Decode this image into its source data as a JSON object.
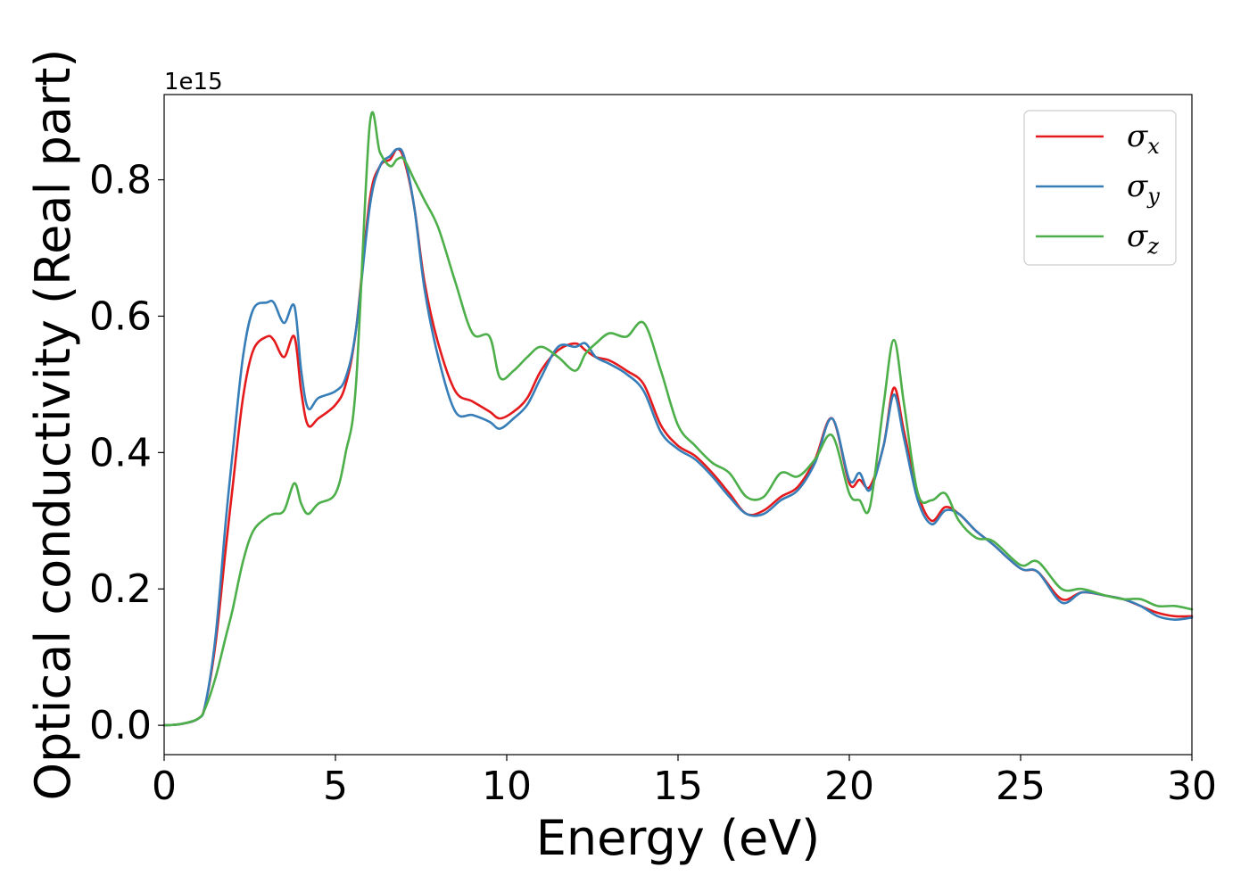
{
  "chart_data": {
    "type": "line",
    "xlabel": "Energy (eV)",
    "ylabel": "Optical conductivity (Real part)",
    "y_offset_label": "1e15",
    "xlim": [
      0,
      30
    ],
    "ylim": [
      -0.043,
      0.925
    ],
    "x_ticks": [
      0,
      5,
      10,
      15,
      20,
      25,
      30
    ],
    "x_tick_labels": [
      "0",
      "5",
      "10",
      "15",
      "20",
      "25",
      "30"
    ],
    "y_ticks": [
      0.0,
      0.2,
      0.4,
      0.6,
      0.8
    ],
    "y_tick_labels": [
      "0.0",
      "0.2",
      "0.4",
      "0.6",
      "0.8"
    ],
    "grid": false,
    "legend_position": "top-right",
    "series": [
      {
        "name": "σx",
        "symbol": "σ",
        "subscript": "x",
        "color": "#e41a1c",
        "x": [
          0,
          0.5,
          1.0,
          1.2,
          1.5,
          1.8,
          2.0,
          2.3,
          2.6,
          3.0,
          3.2,
          3.5,
          3.8,
          4.0,
          4.2,
          4.5,
          5.0,
          5.3,
          5.6,
          6.0,
          6.3,
          6.6,
          6.8,
          7.0,
          7.3,
          7.6,
          8.0,
          8.5,
          9.0,
          9.5,
          9.8,
          10.2,
          10.6,
          11.0,
          11.5,
          12.0,
          12.3,
          12.6,
          13.0,
          13.5,
          14.0,
          14.5,
          15.0,
          15.5,
          16.0,
          16.5,
          17.0,
          17.5,
          18.0,
          18.5,
          19.0,
          19.5,
          20.0,
          20.3,
          20.6,
          21.0,
          21.3,
          21.6,
          22.0,
          22.4,
          22.8,
          23.2,
          23.7,
          24.2,
          25.0,
          25.5,
          26.2,
          26.8,
          27.5,
          28.0,
          28.5,
          29.0,
          29.5,
          30.0
        ],
        "y": [
          0.0,
          0.002,
          0.01,
          0.03,
          0.12,
          0.26,
          0.35,
          0.48,
          0.55,
          0.57,
          0.565,
          0.54,
          0.57,
          0.49,
          0.44,
          0.45,
          0.47,
          0.5,
          0.58,
          0.77,
          0.82,
          0.83,
          0.845,
          0.83,
          0.76,
          0.65,
          0.56,
          0.49,
          0.475,
          0.46,
          0.45,
          0.46,
          0.48,
          0.52,
          0.55,
          0.56,
          0.55,
          0.54,
          0.535,
          0.52,
          0.5,
          0.44,
          0.41,
          0.395,
          0.37,
          0.34,
          0.31,
          0.315,
          0.335,
          0.35,
          0.39,
          0.45,
          0.355,
          0.36,
          0.35,
          0.41,
          0.495,
          0.43,
          0.34,
          0.3,
          0.32,
          0.31,
          0.285,
          0.265,
          0.23,
          0.225,
          0.185,
          0.195,
          0.19,
          0.185,
          0.175,
          0.165,
          0.16,
          0.16
        ]
      },
      {
        "name": "σy",
        "symbol": "σ",
        "subscript": "y",
        "color": "#377eb8",
        "x": [
          0,
          0.5,
          1.0,
          1.2,
          1.5,
          1.8,
          2.0,
          2.3,
          2.6,
          3.0,
          3.2,
          3.5,
          3.8,
          4.0,
          4.2,
          4.5,
          5.0,
          5.3,
          5.6,
          6.0,
          6.3,
          6.6,
          6.8,
          7.0,
          7.3,
          7.6,
          8.0,
          8.5,
          9.0,
          9.5,
          9.8,
          10.2,
          10.6,
          11.0,
          11.5,
          12.0,
          12.3,
          12.6,
          13.0,
          13.5,
          14.0,
          14.5,
          15.0,
          15.5,
          16.0,
          16.5,
          17.0,
          17.5,
          18.0,
          18.5,
          19.0,
          19.5,
          20.0,
          20.3,
          20.6,
          21.0,
          21.3,
          21.6,
          22.0,
          22.4,
          22.8,
          23.2,
          23.7,
          24.2,
          25.0,
          25.5,
          26.2,
          26.8,
          27.5,
          28.0,
          28.5,
          29.0,
          29.5,
          30.0
        ],
        "y": [
          0.0,
          0.002,
          0.01,
          0.03,
          0.13,
          0.3,
          0.4,
          0.54,
          0.61,
          0.62,
          0.62,
          0.59,
          0.615,
          0.52,
          0.465,
          0.48,
          0.49,
          0.51,
          0.58,
          0.76,
          0.82,
          0.835,
          0.845,
          0.835,
          0.76,
          0.64,
          0.54,
          0.46,
          0.455,
          0.445,
          0.435,
          0.45,
          0.47,
          0.51,
          0.555,
          0.555,
          0.56,
          0.54,
          0.53,
          0.515,
          0.49,
          0.43,
          0.405,
          0.39,
          0.365,
          0.335,
          0.31,
          0.31,
          0.33,
          0.345,
          0.385,
          0.45,
          0.36,
          0.37,
          0.345,
          0.41,
          0.485,
          0.42,
          0.33,
          0.295,
          0.315,
          0.31,
          0.285,
          0.265,
          0.23,
          0.225,
          0.18,
          0.195,
          0.19,
          0.185,
          0.175,
          0.16,
          0.155,
          0.158
        ]
      },
      {
        "name": "σz",
        "symbol": "σ",
        "subscript": "z",
        "color": "#4daf4a",
        "x": [
          0,
          0.5,
          1.0,
          1.2,
          1.5,
          1.8,
          2.0,
          2.3,
          2.6,
          3.0,
          3.2,
          3.5,
          3.8,
          4.0,
          4.2,
          4.5,
          5.0,
          5.3,
          5.6,
          6.0,
          6.3,
          6.6,
          6.8,
          7.0,
          7.3,
          7.6,
          8.0,
          8.5,
          9.0,
          9.5,
          9.8,
          10.2,
          10.6,
          11.0,
          11.5,
          12.0,
          12.3,
          12.6,
          13.0,
          13.5,
          14.0,
          14.5,
          15.0,
          15.5,
          16.0,
          16.5,
          17.0,
          17.5,
          18.0,
          18.5,
          19.0,
          19.5,
          20.0,
          20.3,
          20.6,
          21.0,
          21.3,
          21.6,
          22.0,
          22.4,
          22.8,
          23.2,
          23.7,
          24.2,
          25.0,
          25.5,
          26.2,
          26.8,
          27.5,
          28.0,
          28.5,
          29.0,
          29.5,
          30.0
        ],
        "y": [
          0.0,
          0.002,
          0.01,
          0.025,
          0.07,
          0.13,
          0.17,
          0.24,
          0.285,
          0.305,
          0.31,
          0.315,
          0.355,
          0.325,
          0.31,
          0.325,
          0.34,
          0.4,
          0.5,
          0.88,
          0.84,
          0.82,
          0.83,
          0.83,
          0.8,
          0.77,
          0.73,
          0.65,
          0.575,
          0.57,
          0.51,
          0.52,
          0.54,
          0.555,
          0.54,
          0.52,
          0.545,
          0.56,
          0.575,
          0.57,
          0.59,
          0.52,
          0.44,
          0.41,
          0.385,
          0.37,
          0.335,
          0.335,
          0.37,
          0.365,
          0.39,
          0.425,
          0.34,
          0.33,
          0.32,
          0.47,
          0.565,
          0.47,
          0.34,
          0.33,
          0.34,
          0.3,
          0.275,
          0.27,
          0.235,
          0.24,
          0.2,
          0.2,
          0.19,
          0.185,
          0.185,
          0.175,
          0.175,
          0.17
        ]
      }
    ]
  }
}
